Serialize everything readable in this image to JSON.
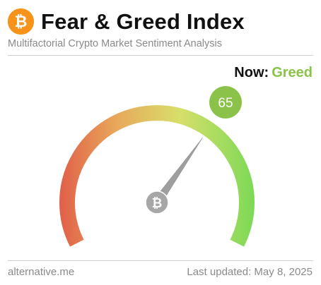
{
  "header": {
    "logo_icon": "bitcoin-icon",
    "title": "Fear & Greed Index",
    "subtitle": "Multifactorial Crypto Market Sentiment Analysis"
  },
  "status": {
    "now_label": "Now:",
    "now_value": "Greed",
    "now_color": "#8bc34a"
  },
  "gauge": {
    "value": 65,
    "value_text": "65",
    "min": 0,
    "max": 100,
    "badge_color": "#8bc34a",
    "gradient_colors": [
      "#e15f49",
      "#e8a95b",
      "#d7df6a",
      "#7ed957"
    ],
    "hub_icon": "bitcoin-icon"
  },
  "footer": {
    "source": "alternative.me",
    "updated": "Last updated: May 8, 2025"
  }
}
